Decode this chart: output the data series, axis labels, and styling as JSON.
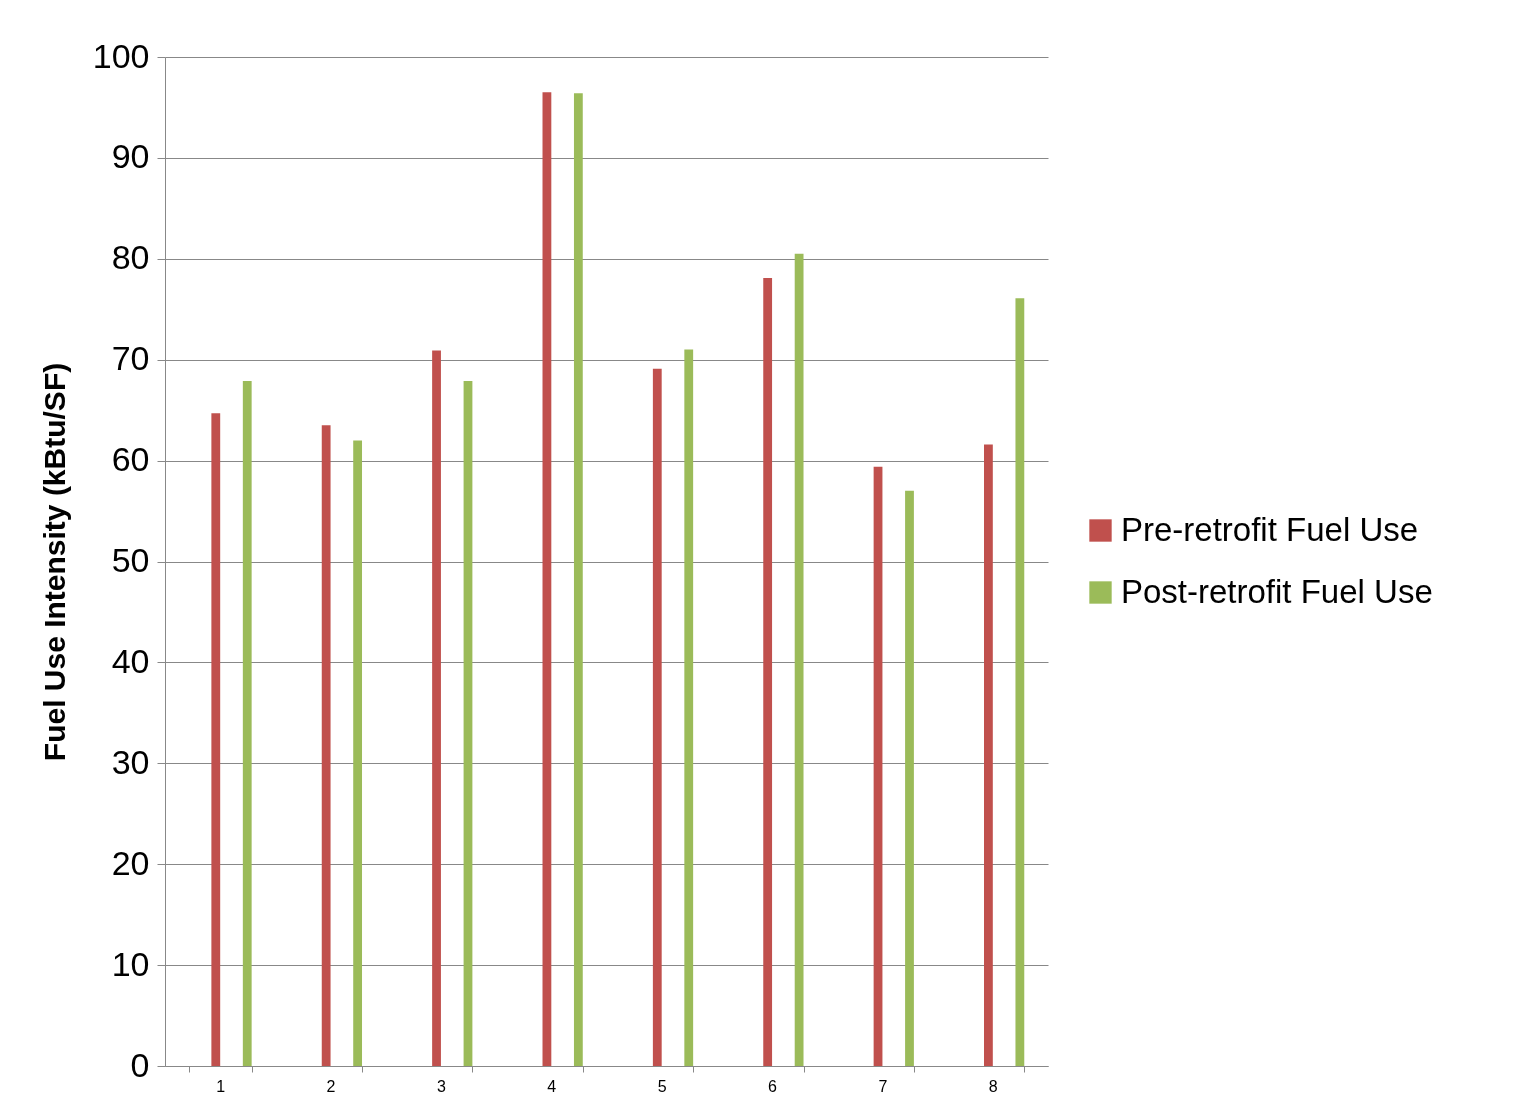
{
  "chart_data": {
    "type": "bar",
    "ylabel": "Fuel Use Intensity (kBtu/SF)",
    "categories": [
      "1",
      "2",
      "3",
      "4",
      "5",
      "6",
      "7",
      "8"
    ],
    "series": [
      {
        "name": "Pre-retrofit Fuel Use",
        "color": "#c0504d",
        "values": [
          64.7,
          63.5,
          70.9,
          96.5,
          69.1,
          78.1,
          59.4,
          61.6
        ]
      },
      {
        "name": "Post-retrofit Fuel Use",
        "color": "#9bbb59",
        "values": [
          67.9,
          62.0,
          67.9,
          96.4,
          71.0,
          80.5,
          57.0,
          76.1
        ]
      }
    ],
    "ylim": [
      0,
      100
    ],
    "yticks": [
      0,
      10,
      20,
      30,
      40,
      50,
      60,
      70,
      80,
      90,
      100
    ],
    "grid": "y",
    "legend": "right"
  }
}
